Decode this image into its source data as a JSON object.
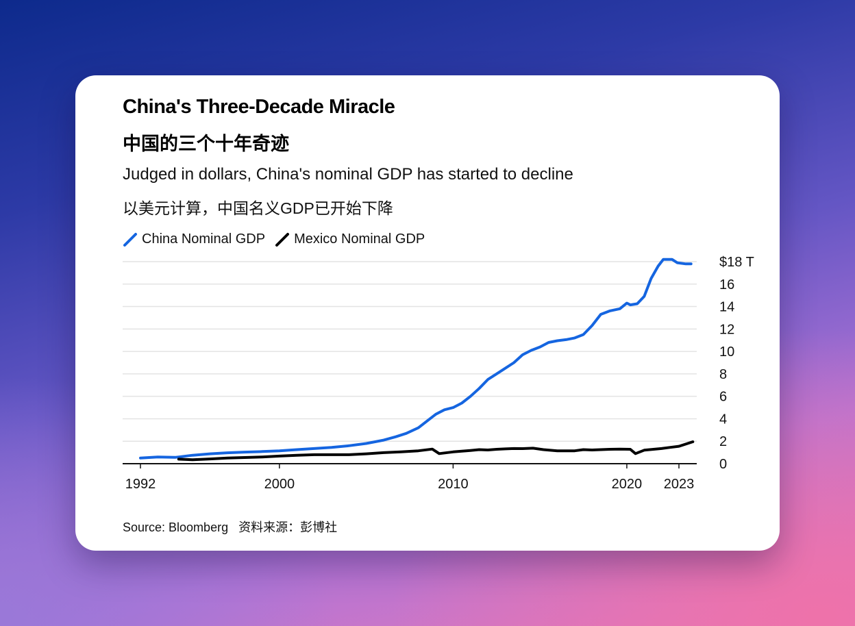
{
  "header": {
    "title": "China's Three-Decade Miracle",
    "title_cn": "中国的三个十年奇迹",
    "subtitle": "Judged in dollars, China's nominal GDP has started to decline",
    "subtitle_cn": "以美元计算，中国名义GDP已开始下降"
  },
  "footer": {
    "source": "Source: Bloomberg",
    "source_cn": "资料来源：彭博社"
  },
  "colors": {
    "china": "#1565e0",
    "mexico": "#000000",
    "grid": "#e3e3e3"
  },
  "chart_data": {
    "type": "line",
    "ylim": [
      0,
      18
    ],
    "xlim": [
      1991,
      2024
    ],
    "y_ticks": [
      "0",
      "2",
      "4",
      "6",
      "8",
      "10",
      "12",
      "14",
      "16",
      "$18 T"
    ],
    "y_tick_values": [
      0,
      2,
      4,
      6,
      8,
      10,
      12,
      14,
      16,
      18
    ],
    "x_ticks": [
      "1992",
      "2000",
      "2010",
      "2020",
      "2023"
    ],
    "x_tick_values": [
      1992,
      2000,
      2010,
      2020,
      2023
    ],
    "grid": true,
    "legend_position": "top-left",
    "series": [
      {
        "name": "China Nominal GDP",
        "color": "#1565e0",
        "points": [
          [
            1992.0,
            0.5
          ],
          [
            1993.0,
            0.6
          ],
          [
            1994.0,
            0.56
          ],
          [
            1995.0,
            0.75
          ],
          [
            1996.0,
            0.88
          ],
          [
            1997.0,
            0.97
          ],
          [
            1998.0,
            1.03
          ],
          [
            1999.0,
            1.08
          ],
          [
            2000.0,
            1.15
          ],
          [
            2001.0,
            1.25
          ],
          [
            2002.0,
            1.35
          ],
          [
            2003.0,
            1.45
          ],
          [
            2004.0,
            1.6
          ],
          [
            2005.0,
            1.8
          ],
          [
            2006.0,
            2.1
          ],
          [
            2006.7,
            2.4
          ],
          [
            2007.3,
            2.7
          ],
          [
            2008.0,
            3.2
          ],
          [
            2008.5,
            3.8
          ],
          [
            2009.0,
            4.4
          ],
          [
            2009.5,
            4.8
          ],
          [
            2010.0,
            5.0
          ],
          [
            2010.5,
            5.4
          ],
          [
            2011.0,
            6.0
          ],
          [
            2011.5,
            6.7
          ],
          [
            2012.0,
            7.5
          ],
          [
            2012.5,
            8.0
          ],
          [
            2013.0,
            8.5
          ],
          [
            2013.5,
            9.0
          ],
          [
            2014.0,
            9.7
          ],
          [
            2014.5,
            10.1
          ],
          [
            2015.0,
            10.4
          ],
          [
            2015.5,
            10.8
          ],
          [
            2016.0,
            10.95
          ],
          [
            2016.5,
            11.05
          ],
          [
            2017.0,
            11.2
          ],
          [
            2017.5,
            11.5
          ],
          [
            2018.0,
            12.3
          ],
          [
            2018.5,
            13.3
          ],
          [
            2019.0,
            13.6
          ],
          [
            2019.6,
            13.8
          ],
          [
            2020.0,
            14.3
          ],
          [
            2020.2,
            14.15
          ],
          [
            2020.6,
            14.25
          ],
          [
            2021.0,
            14.9
          ],
          [
            2021.4,
            16.5
          ],
          [
            2021.8,
            17.6
          ],
          [
            2022.1,
            18.2
          ],
          [
            2022.6,
            18.2
          ],
          [
            2022.9,
            17.9
          ],
          [
            2023.4,
            17.8
          ],
          [
            2023.7,
            17.8
          ]
        ]
      },
      {
        "name": "Mexico Nominal GDP",
        "color": "#000000",
        "points": [
          [
            1994.2,
            0.4
          ],
          [
            1995.0,
            0.35
          ],
          [
            1996.0,
            0.42
          ],
          [
            1997.0,
            0.5
          ],
          [
            1998.0,
            0.55
          ],
          [
            1999.0,
            0.6
          ],
          [
            2000.0,
            0.68
          ],
          [
            2001.0,
            0.75
          ],
          [
            2002.0,
            0.8
          ],
          [
            2003.0,
            0.8
          ],
          [
            2004.0,
            0.8
          ],
          [
            2005.0,
            0.88
          ],
          [
            2006.0,
            0.98
          ],
          [
            2007.0,
            1.05
          ],
          [
            2008.0,
            1.15
          ],
          [
            2008.8,
            1.3
          ],
          [
            2009.2,
            0.9
          ],
          [
            2010.0,
            1.05
          ],
          [
            2011.0,
            1.18
          ],
          [
            2011.5,
            1.25
          ],
          [
            2012.0,
            1.22
          ],
          [
            2012.5,
            1.28
          ],
          [
            2013.0,
            1.32
          ],
          [
            2013.5,
            1.35
          ],
          [
            2014.0,
            1.34
          ],
          [
            2014.6,
            1.38
          ],
          [
            2015.2,
            1.25
          ],
          [
            2016.0,
            1.15
          ],
          [
            2017.0,
            1.15
          ],
          [
            2017.5,
            1.25
          ],
          [
            2018.0,
            1.22
          ],
          [
            2018.5,
            1.25
          ],
          [
            2019.0,
            1.28
          ],
          [
            2019.6,
            1.3
          ],
          [
            2020.2,
            1.28
          ],
          [
            2020.5,
            0.9
          ],
          [
            2021.0,
            1.2
          ],
          [
            2022.0,
            1.35
          ],
          [
            2022.5,
            1.45
          ],
          [
            2023.0,
            1.55
          ],
          [
            2023.5,
            1.8
          ],
          [
            2023.8,
            1.95
          ]
        ]
      }
    ]
  }
}
